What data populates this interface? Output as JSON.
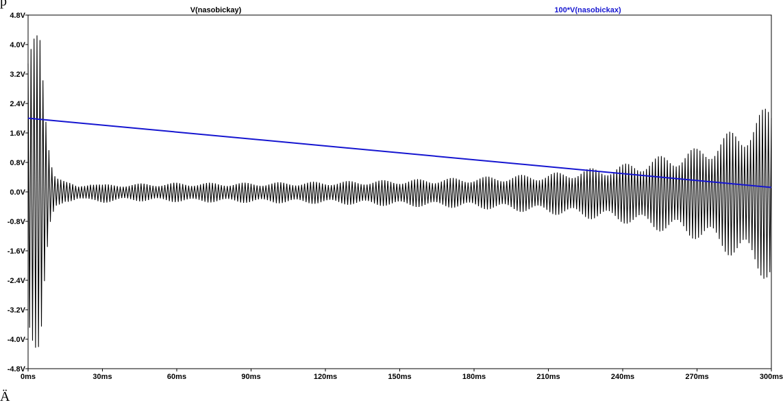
{
  "page_text": {
    "top_fragment": "p",
    "bottom_fragment": "Ä"
  },
  "chart_data": {
    "type": "line",
    "title": "",
    "xlabel": "",
    "ylabel": "",
    "xlim": [
      0,
      300
    ],
    "ylim": [
      -4.8,
      4.8
    ],
    "x_unit": "ms",
    "y_unit": "V",
    "x_ticks": [
      "0ms",
      "30ms",
      "60ms",
      "90ms",
      "120ms",
      "150ms",
      "180ms",
      "210ms",
      "240ms",
      "270ms",
      "300ms"
    ],
    "y_ticks": [
      "4.8V",
      "4.0V",
      "3.2V",
      "2.4V",
      "1.6V",
      "0.8V",
      "0.0V",
      "-0.8V",
      "-1.6V",
      "-2.4V",
      "-3.2V",
      "-4.0V",
      "-4.8V"
    ],
    "x_tick_values": [
      0,
      30,
      60,
      90,
      120,
      150,
      180,
      210,
      240,
      270,
      300
    ],
    "y_tick_values": [
      4.8,
      4.0,
      3.2,
      2.4,
      1.6,
      0.8,
      0.0,
      -0.8,
      -1.6,
      -2.4,
      -3.2,
      -4.0,
      -4.8
    ],
    "grid": false,
    "series": [
      {
        "name": "V(nasobickay)",
        "color": "#000000",
        "style": "dense oscillation envelope",
        "envelope": {
          "x": [
            0,
            2,
            5,
            7,
            9,
            11,
            15,
            20,
            25,
            30,
            40,
            60,
            90,
            120,
            150,
            180,
            210,
            240,
            270,
            285,
            300
          ],
          "upper": [
            4.25,
            4.25,
            4.25,
            2.5,
            1.2,
            0.6,
            0.3,
            0.15,
            0.3,
            0.2,
            0.22,
            0.25,
            0.25,
            0.28,
            0.33,
            0.4,
            0.5,
            0.75,
            1.2,
            1.7,
            2.4
          ],
          "lower": [
            -4.25,
            -4.25,
            -4.25,
            -2.5,
            -1.2,
            -0.6,
            -0.3,
            -0.2,
            -0.3,
            -0.3,
            -0.25,
            -0.28,
            -0.3,
            -0.33,
            -0.4,
            -0.45,
            -0.6,
            -0.85,
            -1.3,
            -1.8,
            -2.5
          ]
        }
      },
      {
        "name": "100*V(nasobickax)",
        "color": "#1515d0",
        "style": "line",
        "x": [
          0,
          300
        ],
        "y": [
          2.0,
          0.12
        ]
      }
    ]
  }
}
